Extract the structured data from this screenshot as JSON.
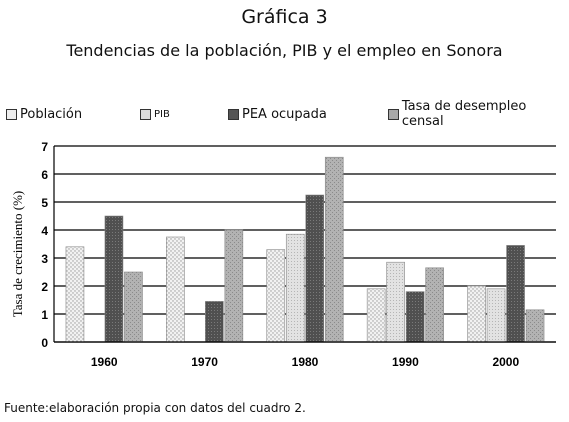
{
  "chart_data": {
    "type": "bar",
    "title": "Gráfica 3",
    "subtitle": "Tendencias de la población, PIB y el empleo en Sonora",
    "ylabel": "Tasa de crecimiento (%)",
    "xlabel": "",
    "ylim": [
      0,
      7
    ],
    "yticks": [
      "0",
      "1",
      "2",
      "3",
      "4",
      "5",
      "6",
      "7"
    ],
    "grid": true,
    "legend_position": "top",
    "categories": [
      "1960",
      "1970",
      "1980",
      "1990",
      "2000"
    ],
    "series": [
      {
        "name": "Población",
        "values": [
          3.4,
          3.75,
          3.3,
          1.9,
          2.0
        ],
        "color": "#eeeeee",
        "pattern": "dots"
      },
      {
        "name": "PIB",
        "values": [
          null,
          null,
          3.85,
          2.85,
          1.9
        ],
        "color": "#dcdcdc",
        "pattern": "light"
      },
      {
        "name": "PEA ocupada",
        "values": [
          4.5,
          1.45,
          5.25,
          1.8,
          3.45
        ],
        "color": "#555555",
        "pattern": "dark"
      },
      {
        "name": "Tasa de desempleo censal",
        "values": [
          2.5,
          4.0,
          6.6,
          2.65,
          1.15
        ],
        "color": "#a8a8a8",
        "pattern": "medium"
      }
    ]
  },
  "footer": "Fuente:elaboración propia con datos del cuadro 2."
}
